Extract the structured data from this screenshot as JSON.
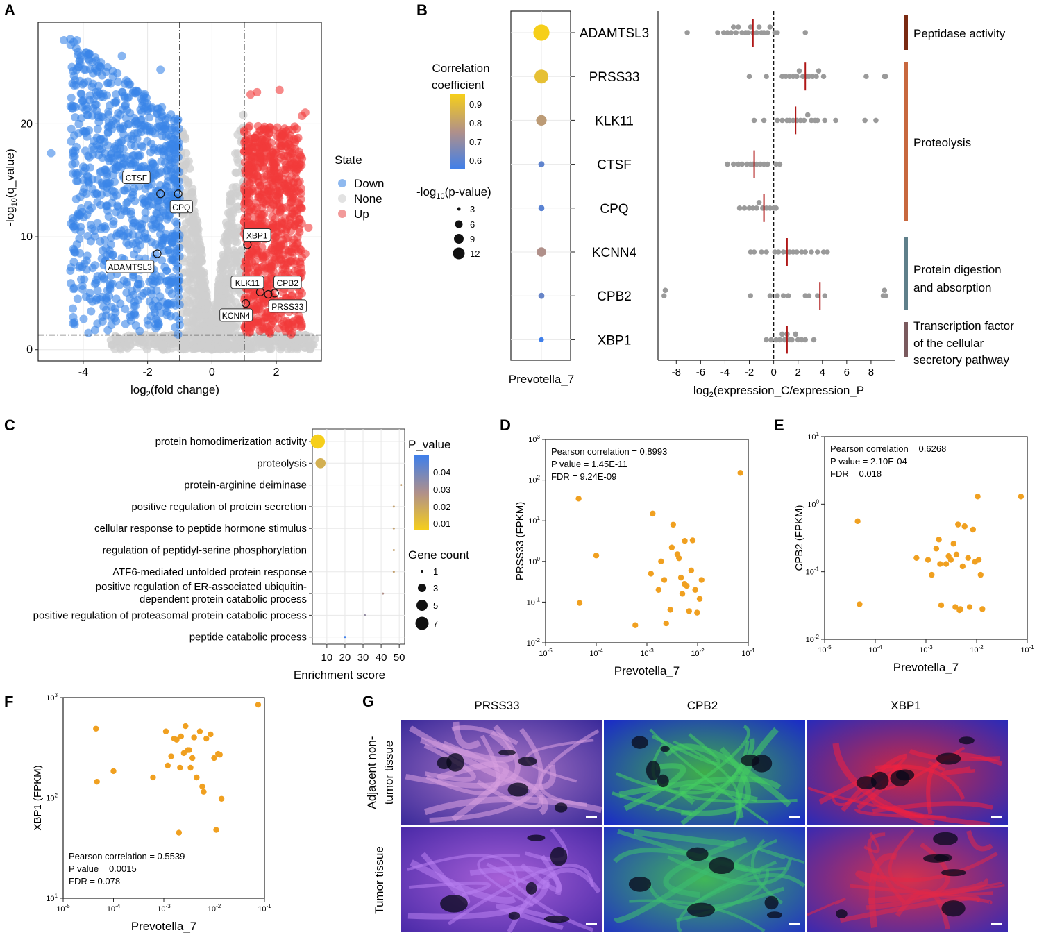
{
  "figure": {
    "panel_labels": [
      "A",
      "B",
      "C",
      "D",
      "E",
      "F",
      "G"
    ]
  },
  "colors": {
    "down": "#3a86e8",
    "none": "#cfcfcf",
    "up": "#f23a3a",
    "point_orange": "#f0a020",
    "gray_dot": "#9a9a9a",
    "median": "#b01818",
    "corr_high": "#f6cf1a",
    "corr_mid": "#b0908a",
    "corr_low": "#3f7fea",
    "bar_peptidase": "#7a2a12",
    "bar_proteolysis": "#c8683e",
    "bar_digestion": "#5f7f8a",
    "bar_transcription": "#7a5a5e"
  },
  "chart_data": [
    {
      "id": "A",
      "type": "scatter",
      "subtype": "volcano",
      "xlabel": "log2(fold change)",
      "ylabel": "-log10(q_value)",
      "xlim": [
        -5.4,
        3.4
      ],
      "ylim": [
        -1,
        29
      ],
      "xticks": [
        -4,
        -2,
        0,
        2
      ],
      "yticks": [
        0,
        10,
        20
      ],
      "thresholds": {
        "x": [
          -1,
          1
        ],
        "y": 1.3
      },
      "legend": {
        "title": "State",
        "entries": [
          "Down",
          "None",
          "Up"
        ],
        "placement": "right"
      },
      "labeled_genes": [
        {
          "name": "CTSF",
          "x": -1.6,
          "y": 13.8
        },
        {
          "name": "CPQ",
          "x": -1.05,
          "y": 13.8
        },
        {
          "name": "XBP1",
          "x": 1.1,
          "y": 9.3
        },
        {
          "name": "ADAMTSL3",
          "x": -1.7,
          "y": 8.5
        },
        {
          "name": "KLK11",
          "x": 1.5,
          "y": 5.1
        },
        {
          "name": "CPB2",
          "x": 1.95,
          "y": 5.0
        },
        {
          "name": "PRSS33",
          "x": 1.75,
          "y": 4.9
        },
        {
          "name": "KCNN4",
          "x": 1.05,
          "y": 4.1
        }
      ]
    },
    {
      "id": "B-left",
      "type": "scatter",
      "subtype": "bubble",
      "xlabel": "Prevotella_7",
      "genes": [
        "ADAMTSL3",
        "PRSS33",
        "KLK11",
        "CTSF",
        "CPQ",
        "KCNN4",
        "CPB2",
        "XBP1"
      ],
      "correlation": [
        0.92,
        0.88,
        0.78,
        0.63,
        0.62,
        0.75,
        0.64,
        0.58
      ],
      "neglog10_p": [
        12,
        10,
        7,
        3,
        3,
        6,
        3,
        2
      ],
      "legend_corr": {
        "title_line1": "Correlation",
        "title_line2": "coefficient",
        "ticks": [
          "0.9",
          "0.8",
          "0.7",
          "0.6"
        ]
      },
      "legend_size": {
        "title": "-log10(p-value)",
        "title_main": "-log",
        "title_sub": "10",
        "title_rest": "(p-value)",
        "ticks": [
          "3",
          "6",
          "9",
          "12"
        ]
      }
    },
    {
      "id": "B-right",
      "type": "scatter",
      "subtype": "strip",
      "xlabel": "log2(expression_C/expression_P",
      "xlim": [
        -9.5,
        10
      ],
      "xticks": [
        -8,
        -6,
        -4,
        -2,
        0,
        2,
        4,
        6,
        8
      ],
      "genes": [
        "ADAMTSL3",
        "PRSS33",
        "KLK11",
        "CTSF",
        "CPQ",
        "KCNN4",
        "CPB2",
        "XBP1"
      ],
      "medians": [
        -1.7,
        2.6,
        1.8,
        -1.6,
        -0.8,
        1.1,
        3.8,
        1.1
      ],
      "values": [
        [
          -7.1,
          -4.6,
          -4.1,
          -3.8,
          -3.5,
          -3.3,
          -3.1,
          -2.9,
          -2.6,
          -2.3,
          -2.1,
          -1.9,
          -1.7,
          -1.4,
          -1.2,
          -1.0,
          -0.8,
          -0.5,
          -0.3,
          0.1,
          0.3,
          2.6
        ],
        [
          -2.0,
          -0.6,
          0.7,
          1.0,
          1.3,
          1.6,
          1.9,
          2.1,
          2.4,
          2.7,
          2.9,
          3.2,
          3.5,
          3.7,
          4.1,
          7.6,
          9.1,
          9.2
        ],
        [
          -1.6,
          -0.8,
          0.3,
          0.7,
          1.1,
          1.3,
          1.6,
          1.9,
          2.2,
          2.5,
          2.8,
          3.1,
          3.4,
          3.6,
          4.2,
          5.1,
          7.5,
          8.4
        ],
        [
          -3.8,
          -3.3,
          -2.9,
          -2.6,
          -2.2,
          -1.9,
          -1.7,
          -1.4,
          -1.1,
          -0.8,
          -0.5,
          0.2,
          0.5
        ],
        [
          -2.8,
          -2.4,
          -2.0,
          -1.7,
          -1.4,
          -1.2,
          -0.9,
          -0.6,
          -0.3,
          0.0,
          0.2
        ],
        [
          -1.9,
          -1.6,
          -1.0,
          -0.6,
          0.1,
          0.4,
          0.8,
          1.1,
          1.3,
          1.6,
          1.9,
          2.3,
          2.6,
          3.1,
          3.6,
          4.1,
          4.4
        ],
        [
          -9.0,
          -8.9,
          -1.9,
          -0.3,
          0.3,
          0.8,
          1.2,
          2.6,
          2.9,
          3.6,
          4.2,
          9.0,
          9.1,
          9.2
        ],
        [
          -0.6,
          -0.2,
          0.2,
          0.5,
          0.7,
          0.9,
          1.1,
          1.3,
          1.5,
          1.8,
          2.0,
          2.3,
          2.6,
          3.3
        ]
      ],
      "annotations": [
        {
          "label": "Peptidase activity"
        },
        {
          "label": "Proteolysis"
        },
        {
          "label": "Protein digestion",
          "label2": "and absorption"
        },
        {
          "label": "Transcription factor",
          "label2": "of the cellular",
          "label3": "secretory pathway"
        }
      ]
    },
    {
      "id": "C",
      "type": "scatter",
      "subtype": "enrichment-dot",
      "xlabel": "Enrichment score",
      "xlim": [
        2,
        53
      ],
      "xticks": [
        10,
        20,
        30,
        40,
        50
      ],
      "terms": [
        "protein homodimerization activity",
        "proteolysis",
        "protein-arginine deiminase",
        "positive regulation of protein secretion",
        "cellular response to peptide hormone stimulus",
        "regulation of peptidyl-serine phosphorylation",
        "ATF6-mediated unfolded protein response",
        "positive regulation of ER-associated ubiquitin-",
        "positive regulation of proteasomal protein catabolic process",
        "peptide catabolic process"
      ],
      "term8_line2": "dependent protein catabolic process",
      "enrichment": [
        5,
        6.5,
        51,
        47,
        47,
        47,
        47,
        41,
        31,
        20
      ],
      "p_value": [
        0.005,
        0.015,
        0.02,
        0.02,
        0.02,
        0.02,
        0.02,
        0.025,
        0.03,
        0.045
      ],
      "gene_count": [
        7,
        5,
        1,
        1,
        1,
        1,
        1,
        1,
        1,
        1
      ],
      "legend_p": {
        "title": "P_value",
        "ticks": [
          "0.04",
          "0.03",
          "0.02",
          "0.01"
        ]
      },
      "legend_count": {
        "title": "Gene count",
        "ticks": [
          "1",
          "3",
          "5",
          "7"
        ]
      }
    },
    {
      "id": "D",
      "type": "scatter",
      "xscale": "log",
      "yscale": "log",
      "xlabel": "Prevotella_7",
      "ylabel": "PRSS33 (FPKM)",
      "xlim_exp": [
        -5,
        -1
      ],
      "ylim_exp": [
        -2,
        3
      ],
      "stats": [
        "Pearson correlation = 0.8993",
        "P value = 1.45E-11",
        "FDR = 9.24E-09"
      ],
      "points": [
        [
          4.49e-05,
          35
        ],
        [
          4.7e-05,
          0.095
        ],
        [
          0.0001,
          1.4
        ],
        [
          0.00059,
          0.027
        ],
        [
          0.0012,
          0.5
        ],
        [
          0.0013,
          15
        ],
        [
          0.0017,
          0.2
        ],
        [
          0.0019,
          1.0
        ],
        [
          0.0022,
          0.35
        ],
        [
          0.0024,
          0.03
        ],
        [
          0.0029,
          0.065
        ],
        [
          0.0031,
          2.2
        ],
        [
          0.0033,
          8
        ],
        [
          0.004,
          1.5
        ],
        [
          0.0043,
          1.2
        ],
        [
          0.0047,
          0.4
        ],
        [
          0.005,
          0.16
        ],
        [
          0.0055,
          0.28
        ],
        [
          0.0056,
          3.2
        ],
        [
          0.0061,
          0.25
        ],
        [
          0.0068,
          0.06
        ],
        [
          0.0075,
          0.6
        ],
        [
          0.008,
          3.3
        ],
        [
          0.009,
          0.2
        ],
        [
          0.0098,
          0.055
        ],
        [
          0.011,
          0.12
        ],
        [
          0.012,
          0.35
        ],
        [
          0.07,
          150
        ]
      ]
    },
    {
      "id": "E",
      "type": "scatter",
      "xscale": "log",
      "yscale": "log",
      "xlabel": "Prevotella_7",
      "ylabel": "CPB2 (FPKM)",
      "xlim_exp": [
        -5,
        -1
      ],
      "ylim_exp": [
        -2,
        1
      ],
      "stats": [
        "Pearson correlation = 0.6268",
        "P value = 2.10E-04",
        "FDR = 0.018"
      ],
      "points": [
        [
          4.49e-05,
          0.56
        ],
        [
          4.9e-05,
          0.033
        ],
        [
          0.00065,
          0.16
        ],
        [
          0.0011,
          0.15
        ],
        [
          0.0013,
          0.09
        ],
        [
          0.0016,
          0.22
        ],
        [
          0.0018,
          0.3
        ],
        [
          0.0019,
          0.13
        ],
        [
          0.002,
          0.032
        ],
        [
          0.0025,
          0.13
        ],
        [
          0.0028,
          0.17
        ],
        [
          0.0031,
          0.15
        ],
        [
          0.0035,
          0.26
        ],
        [
          0.0038,
          0.03
        ],
        [
          0.004,
          0.18
        ],
        [
          0.0043,
          0.5
        ],
        [
          0.0046,
          0.027
        ],
        [
          0.0048,
          0.028
        ],
        [
          0.0053,
          0.12
        ],
        [
          0.0058,
          0.47
        ],
        [
          0.0068,
          0.16
        ],
        [
          0.0073,
          0.03
        ],
        [
          0.0085,
          0.42
        ],
        [
          0.0093,
          0.14
        ],
        [
          0.011,
          0.15
        ],
        [
          0.0105,
          1.3
        ],
        [
          0.012,
          0.09
        ],
        [
          0.013,
          0.028
        ],
        [
          0.075,
          1.3
        ]
      ]
    },
    {
      "id": "F",
      "type": "scatter",
      "xscale": "log",
      "yscale": "log",
      "xlabel": "Prevotella_7",
      "ylabel": "XBP1 (FPKM)",
      "xlim_exp": [
        -5,
        -1
      ],
      "ylim_exp": [
        1,
        3
      ],
      "stats": [
        "Pearson correlation = 0.5539",
        "P value = 0.0015",
        "FDR = 0.078"
      ],
      "points": [
        [
          4.49e-05,
          490
        ],
        [
          4.7e-05,
          145
        ],
        [
          0.0001,
          185
        ],
        [
          0.00061,
          160
        ],
        [
          0.0011,
          460
        ],
        [
          0.0012,
          210
        ],
        [
          0.0014,
          260
        ],
        [
          0.0016,
          390
        ],
        [
          0.0018,
          380
        ],
        [
          0.002,
          45
        ],
        [
          0.0021,
          200
        ],
        [
          0.0022,
          410
        ],
        [
          0.0025,
          280
        ],
        [
          0.0027,
          520
        ],
        [
          0.003,
          300
        ],
        [
          0.0032,
          300
        ],
        [
          0.0034,
          200
        ],
        [
          0.0037,
          250
        ],
        [
          0.004,
          400
        ],
        [
          0.0045,
          160
        ],
        [
          0.0052,
          460
        ],
        [
          0.0058,
          130
        ],
        [
          0.0062,
          115
        ],
        [
          0.007,
          390
        ],
        [
          0.0085,
          430
        ],
        [
          0.01,
          250
        ],
        [
          0.011,
          48
        ],
        [
          0.012,
          275
        ],
        [
          0.013,
          270
        ],
        [
          0.014,
          98
        ],
        [
          0.075,
          850
        ]
      ]
    }
  ],
  "panel_g": {
    "column_titles": [
      "PRSS33",
      "CPB2",
      "XBP1"
    ],
    "row_titles": [
      [
        "Adjacent non-",
        "tumor tissue"
      ],
      [
        "Tumor tissue"
      ]
    ]
  }
}
